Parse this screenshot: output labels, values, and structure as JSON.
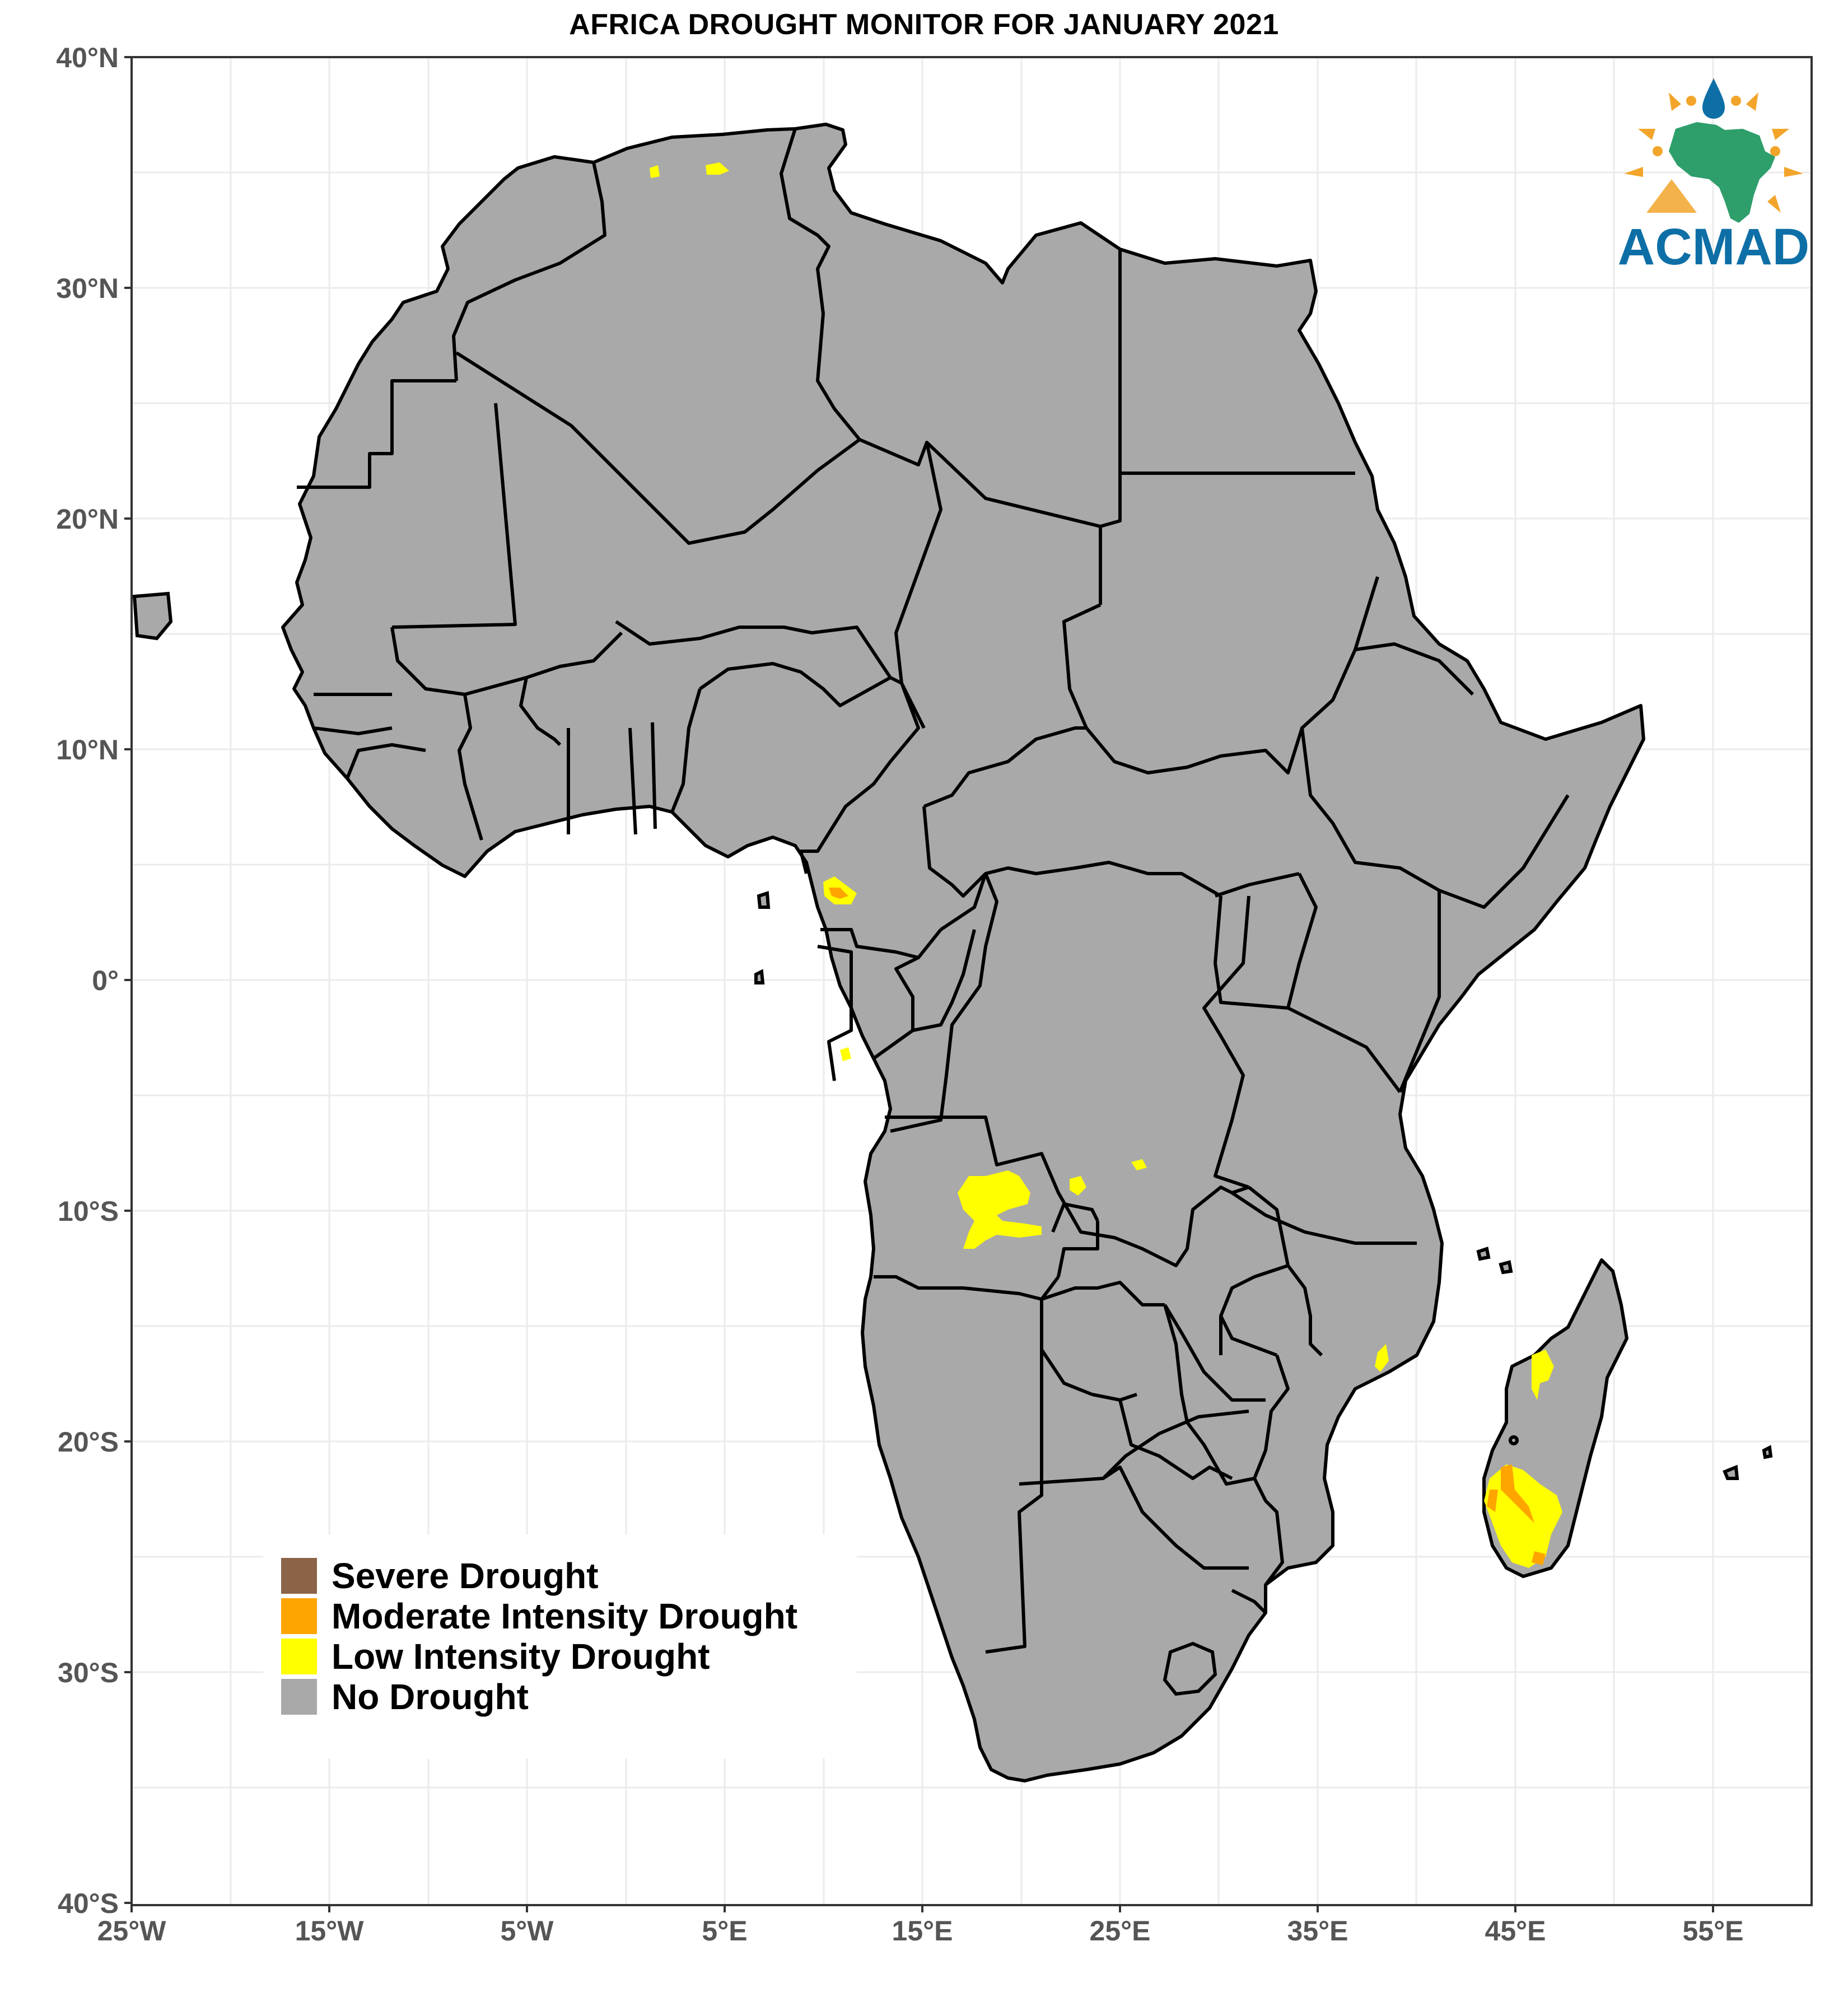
{
  "title": "AFRICA DROUGHT MONITOR FOR JANUARY 2021",
  "map": {
    "lon_range": [
      -25,
      60
    ],
    "lat_range": [
      -40,
      40
    ],
    "x_ticks": [
      "25°W",
      "15°W",
      "5°W",
      "5°E",
      "15°E",
      "25°E",
      "35°E",
      "45°E",
      "55°E"
    ],
    "y_ticks": [
      "40°N",
      "30°N",
      "20°N",
      "10°N",
      "0°",
      "10°S",
      "20°S",
      "30°S",
      "40°S"
    ],
    "grid": true
  },
  "legend": {
    "items": [
      {
        "label": "Severe Drought",
        "color": "#8B6347"
      },
      {
        "label": "Moderate Intensity Drought",
        "color": "#FFA500"
      },
      {
        "label": "Low Intensity Drought",
        "color": "#FFFF00"
      },
      {
        "label": "No Drought",
        "color": "#A9A9A9"
      }
    ]
  },
  "logo": {
    "text": "ACMAD",
    "text_color": "#0E6FA6",
    "continent_color": "#2E9E6B",
    "sun_color": "#F2A52A"
  },
  "colors": {
    "land": "#A9A9A9",
    "borders": "#000000",
    "grid": "#EBEBEB"
  }
}
